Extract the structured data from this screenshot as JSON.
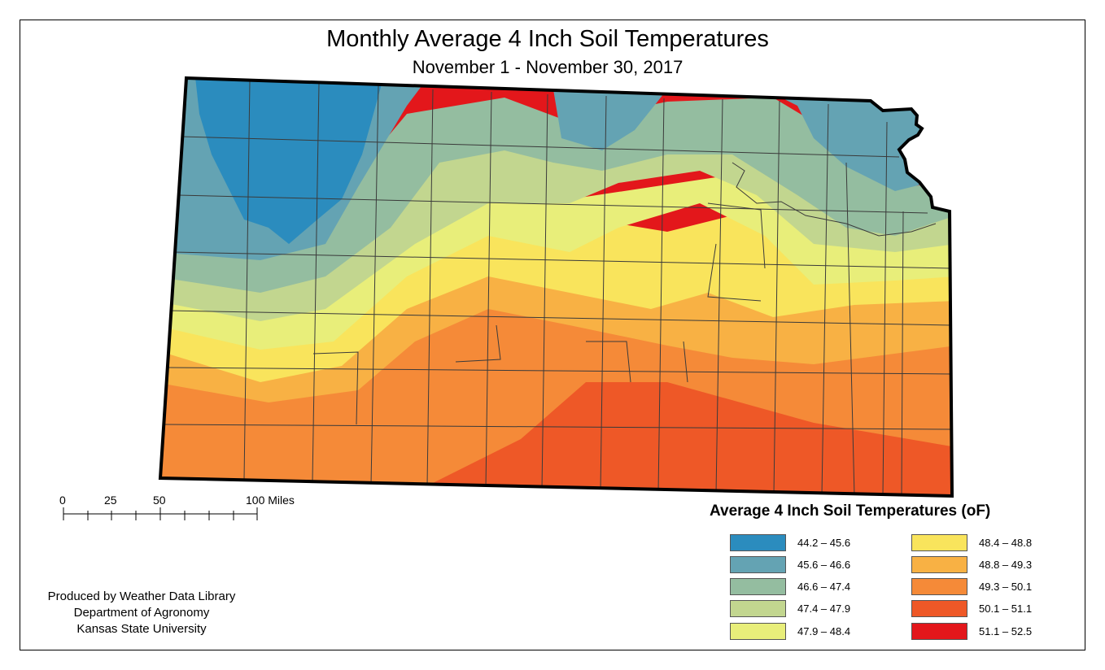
{
  "title": "Monthly Average 4 Inch Soil Temperatures",
  "subtitle": "November 1 - November 30, 2017",
  "scale_bar": {
    "ticks": [
      "0",
      "25",
      "50",
      "100 Miles"
    ]
  },
  "legend": {
    "title": "Average 4 Inch Soil Temperatures (oF)",
    "items": [
      {
        "label": "44.2 – 45.6",
        "color": "#2b8cbe"
      },
      {
        "label": "45.6 – 46.6",
        "color": "#64a3b3"
      },
      {
        "label": "46.6 – 47.4",
        "color": "#94bda0"
      },
      {
        "label": "47.4 – 47.9",
        "color": "#c2d68f"
      },
      {
        "label": "47.9 – 48.4",
        "color": "#e8ee7a"
      },
      {
        "label": "48.4 – 48.8",
        "color": "#f9e45c"
      },
      {
        "label": "48.8 – 49.3",
        "color": "#f8b144"
      },
      {
        "label": "49.3 – 50.1",
        "color": "#f58a38"
      },
      {
        "label": "50.1 – 51.1",
        "color": "#ee5827"
      },
      {
        "label": "51.1 – 52.5",
        "color": "#e3171b"
      }
    ]
  },
  "credits": {
    "line1": "Produced by Weather Data Library",
    "line2": "Department of Agronomy",
    "line3": "Kansas State University"
  }
}
